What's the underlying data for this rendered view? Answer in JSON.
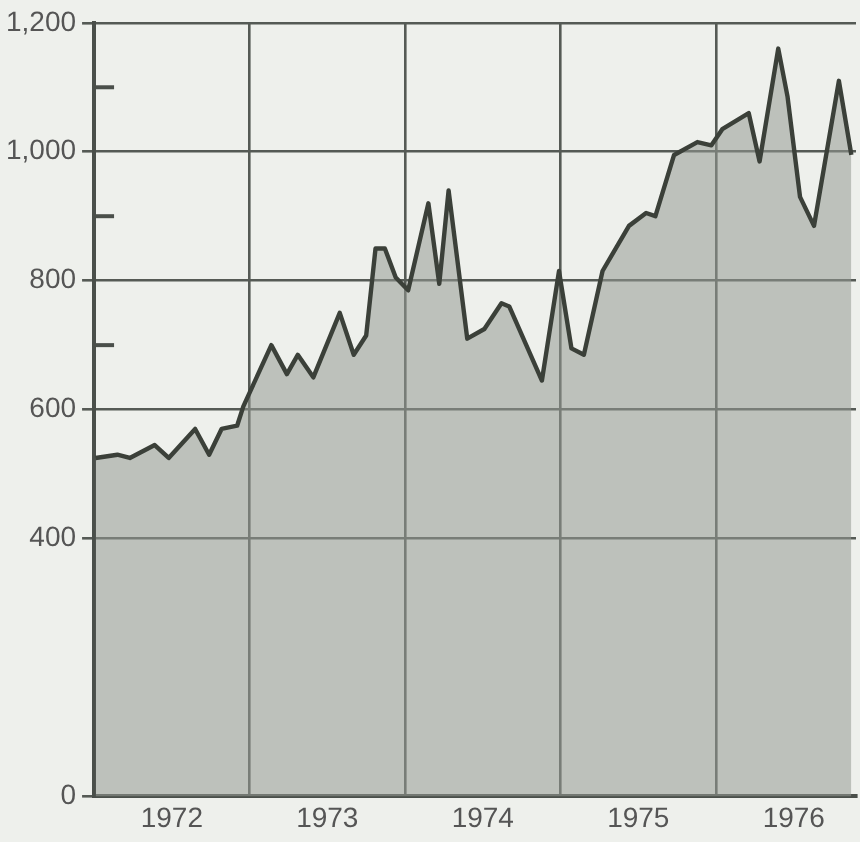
{
  "chart_data": {
    "type": "area",
    "x": [
      1972.01,
      1972.15,
      1972.23,
      1972.39,
      1972.48,
      1972.65,
      1972.74,
      1972.82,
      1972.92,
      1972.96,
      1973.14,
      1973.24,
      1973.31,
      1973.41,
      1973.58,
      1973.67,
      1973.75,
      1973.81,
      1973.87,
      1973.94,
      1974.02,
      1974.15,
      1974.22,
      1974.28,
      1974.4,
      1974.51,
      1974.62,
      1974.67,
      1974.88,
      1974.99,
      1975.07,
      1975.15,
      1975.27,
      1975.44,
      1975.55,
      1975.61,
      1975.73,
      1975.88,
      1975.97,
      1976.04,
      1976.21,
      1976.28,
      1976.4,
      1976.46,
      1976.54,
      1976.63,
      1976.79,
      1976.87
    ],
    "series": [
      {
        "color": "#3b4039",
        "values": [
          525,
          530,
          525,
          545,
          525,
          570,
          530,
          570,
          575,
          605,
          700,
          655,
          685,
          650,
          750,
          685,
          715,
          850,
          850,
          805,
          785,
          920,
          795,
          940,
          710,
          725,
          765,
          760,
          645,
          815,
          695,
          685,
          815,
          885,
          905,
          900,
          995,
          1015,
          1010,
          1035,
          1060,
          985,
          1160,
          1085,
          930,
          885,
          1110,
          995
        ]
      }
    ],
    "xlim": [
      1972,
      1976.9
    ],
    "xticks": [
      {
        "value": 1972.5,
        "label": "1972"
      },
      {
        "value": 1973,
        "label": null
      },
      {
        "value": 1973.5,
        "label": "1973"
      },
      {
        "value": 1974,
        "label": null
      },
      {
        "value": 1974.5,
        "label": "1974"
      },
      {
        "value": 1975,
        "label": null
      },
      {
        "value": 1975.5,
        "label": "1975"
      },
      {
        "value": 1976,
        "label": null
      },
      {
        "value": 1976.5,
        "label": "1976"
      }
    ],
    "ylim": [
      0,
      1200
    ],
    "yticks": [
      0,
      400,
      600,
      {
        "value": 700,
        "label": null
      },
      800,
      {
        "value": 900,
        "label": null
      },
      "1,000",
      {
        "value": 1100,
        "label": null
      },
      "1,200"
    ],
    "grid": true,
    "legend": false,
    "marker": "none",
    "line_style": "solid"
  }
}
